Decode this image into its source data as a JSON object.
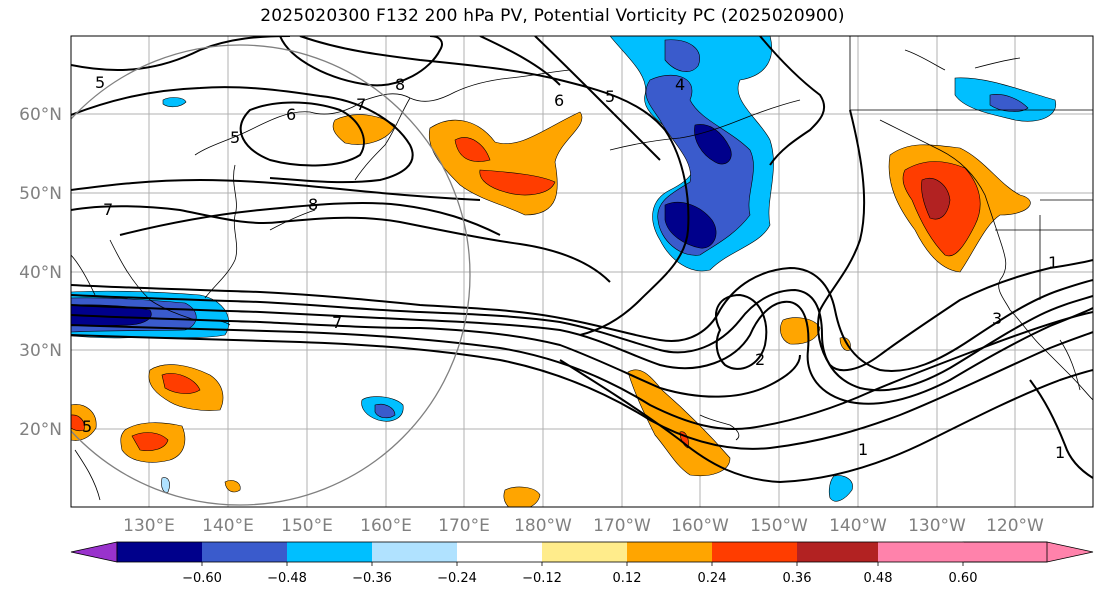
{
  "title": "2025020300 F132 200 hPa PV, Potential Vorticity PC (2025020900)",
  "lat_labels": [
    "60°N",
    "50°N",
    "40°N",
    "30°N",
    "20°N"
  ],
  "lon_labels": [
    "130°E",
    "140°E",
    "150°E",
    "160°E",
    "170°E",
    "180°W",
    "170°W",
    "160°W",
    "150°W",
    "140°W",
    "130°W",
    "120°W"
  ],
  "colorbar": {
    "colors": [
      "#9932cc",
      "#00008b",
      "#3a5bcc",
      "#00bfff",
      "#b0e2ff",
      "#ffffff",
      "#ffec8b",
      "#ffa500",
      "#ff3d00",
      "#b22222",
      "#ff82ab"
    ],
    "tick_labels": [
      "−0.60",
      "−0.48",
      "−0.36",
      "−0.24",
      "−0.12",
      "0.12",
      "0.24",
      "0.36",
      "0.48",
      "0.60"
    ]
  },
  "contour_labels": [
    "5",
    "8",
    "6",
    "7",
    "6",
    "5",
    "5",
    "7",
    "8",
    "4",
    "7",
    "2",
    "3",
    "1",
    "1",
    "1",
    "5"
  ]
}
